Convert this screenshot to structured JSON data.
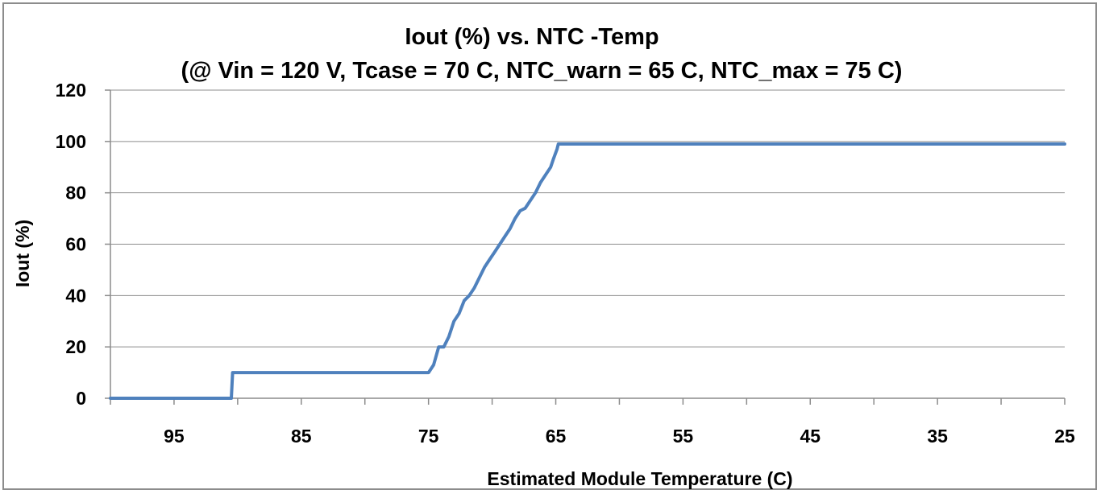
{
  "chart_data": {
    "type": "line",
    "title": "Iout (%) vs. NTC -Temp",
    "subtitle": "(@ Vin = 120 V, Tcase = 70 C, NTC_warn = 65 C, NTC_max = 75 C)",
    "xlabel": "Estimated Module Temperature (C)",
    "ylabel": "Iout (%)",
    "xlim": [
      100,
      25
    ],
    "x_reversed": true,
    "ylim": [
      0,
      120
    ],
    "x_ticks": [
      95,
      85,
      75,
      65,
      55,
      45,
      35,
      25
    ],
    "y_ticks": [
      0,
      20,
      40,
      60,
      80,
      100,
      120
    ],
    "grid": "horizontal",
    "line_color": "#4f81bd",
    "series": [
      {
        "points": [
          [
            100,
            0
          ],
          [
            90.5,
            0
          ],
          [
            90.4,
            10
          ],
          [
            75.2,
            10
          ],
          [
            75,
            10
          ],
          [
            74.6,
            13
          ],
          [
            74.2,
            20
          ],
          [
            73.8,
            20
          ],
          [
            73.4,
            24
          ],
          [
            73.0,
            30
          ],
          [
            72.6,
            33
          ],
          [
            72.2,
            38
          ],
          [
            71.8,
            40
          ],
          [
            71.4,
            43
          ],
          [
            71.0,
            47
          ],
          [
            70.6,
            51
          ],
          [
            70.2,
            54
          ],
          [
            69.8,
            57
          ],
          [
            69.4,
            60
          ],
          [
            69.0,
            63
          ],
          [
            68.6,
            66
          ],
          [
            68.2,
            70
          ],
          [
            67.8,
            73
          ],
          [
            67.4,
            74
          ],
          [
            67.0,
            77
          ],
          [
            66.6,
            80
          ],
          [
            66.2,
            84
          ],
          [
            65.8,
            87
          ],
          [
            65.4,
            90
          ],
          [
            65.2,
            93
          ],
          [
            64.9,
            97
          ],
          [
            64.8,
            99
          ],
          [
            25,
            99
          ]
        ]
      }
    ]
  }
}
